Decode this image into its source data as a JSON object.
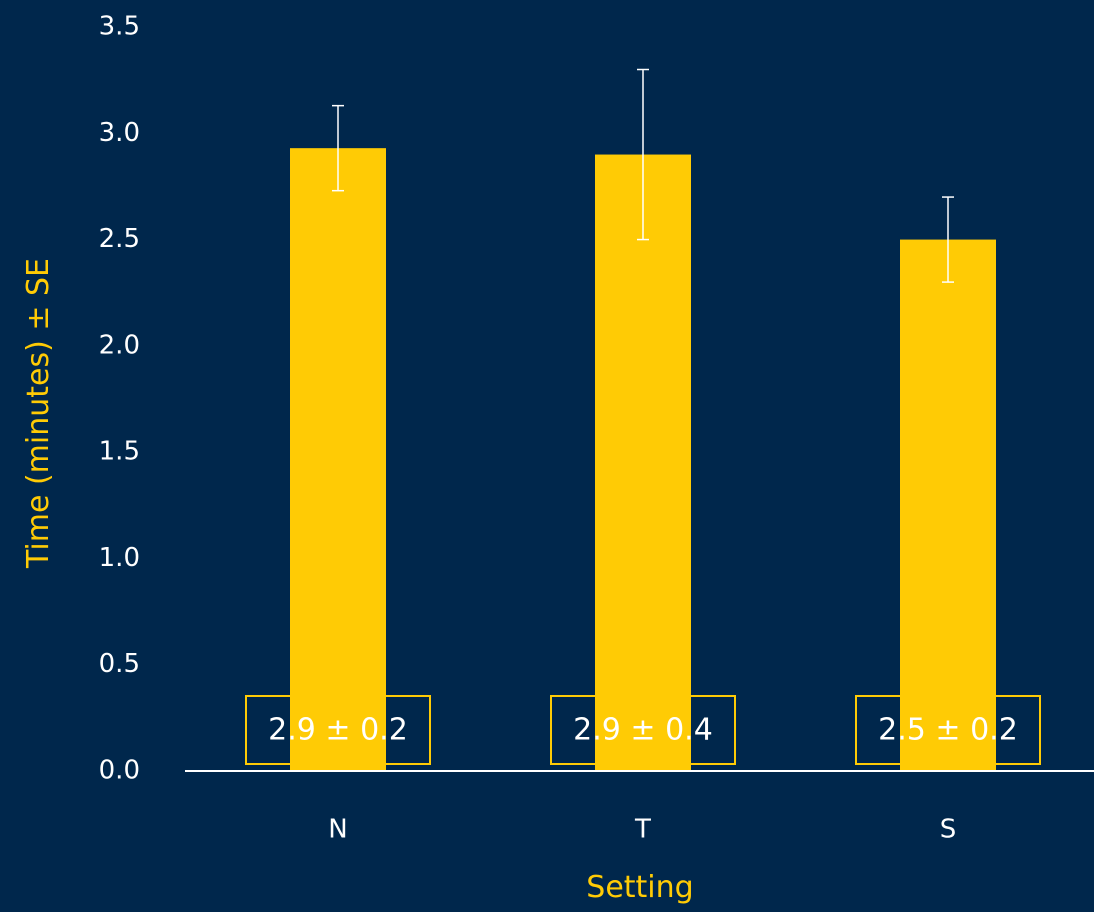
{
  "chart_data": {
    "type": "bar",
    "categories": [
      "N",
      "T",
      "S"
    ],
    "values": [
      2.93,
      2.9,
      2.5
    ],
    "error": [
      0.2,
      0.4,
      0.2
    ],
    "data_labels": [
      "2.9 ± 0.2",
      "2.9 ± 0.4",
      "2.5 ± 0.2"
    ],
    "xlabel": "Setting",
    "ylabel": "Time (minutes) ± SE",
    "ylim": [
      0,
      3.5
    ],
    "yticks": [
      "0.0",
      "0.5",
      "1.0",
      "1.5",
      "2.0",
      "2.5",
      "3.0",
      "3.5"
    ],
    "grid": false,
    "legend": "none"
  },
  "colors": {
    "background": "#00274c",
    "bar": "#ffcb05",
    "axis_title": "#ffcb05",
    "tick_text": "#ffffff",
    "error_bar": "#ffffff"
  }
}
